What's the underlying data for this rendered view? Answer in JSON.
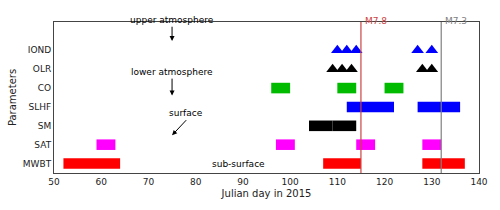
{
  "chart_data": {
    "type": "timeline",
    "xlabel": "Julian day in 2015",
    "ylabel": "Parameters",
    "xlim": [
      50,
      140
    ],
    "ylim": [
      -0.5,
      7.5
    ],
    "xticks": [
      50,
      60,
      70,
      80,
      90,
      100,
      110,
      120,
      130,
      140
    ],
    "yticks": [
      {
        "value": 0,
        "label": "MWBT"
      },
      {
        "value": 1,
        "label": "SAT"
      },
      {
        "value": 2,
        "label": "SM"
      },
      {
        "value": 3,
        "label": "SLHF"
      },
      {
        "value": 4,
        "label": "CO"
      },
      {
        "value": 5,
        "label": "OLR"
      },
      {
        "value": 6,
        "label": "IOND"
      }
    ],
    "grid": false,
    "rectangles": [
      {
        "x": 52,
        "y": -0.28,
        "w": 12,
        "h": 0.56,
        "color": "#ff0000"
      },
      {
        "x": 107,
        "y": -0.28,
        "w": 8,
        "h": 0.56,
        "color": "#ff0000"
      },
      {
        "x": 128,
        "y": -0.28,
        "w": 9,
        "h": 0.56,
        "color": "#ff0000"
      },
      {
        "x": 59,
        "y": 0.72,
        "w": 4,
        "h": 0.56,
        "color": "#ff00ff"
      },
      {
        "x": 97,
        "y": 0.72,
        "w": 4,
        "h": 0.56,
        "color": "#ff00ff"
      },
      {
        "x": 114,
        "y": 0.72,
        "w": 4,
        "h": 0.56,
        "color": "#ff00ff"
      },
      {
        "x": 128,
        "y": 0.72,
        "w": 4,
        "h": 0.56,
        "color": "#ff00ff"
      },
      {
        "x": 104,
        "y": 1.72,
        "w": 5,
        "h": 0.56,
        "color": "#000000"
      },
      {
        "x": 109,
        "y": 1.72,
        "w": 5,
        "h": 0.56,
        "color": "#000000"
      },
      {
        "x": 112,
        "y": 2.72,
        "w": 10,
        "h": 0.56,
        "color": "#0000ff"
      },
      {
        "x": 127,
        "y": 2.72,
        "w": 9,
        "h": 0.56,
        "color": "#0000ff"
      },
      {
        "x": 96,
        "y": 3.72,
        "w": 4,
        "h": 0.56,
        "color": "#00bb00"
      },
      {
        "x": 110,
        "y": 3.72,
        "w": 4,
        "h": 0.56,
        "color": "#00bb00"
      },
      {
        "x": 120,
        "y": 3.72,
        "w": 4,
        "h": 0.56,
        "color": "#00bb00"
      }
    ],
    "markers": [
      {
        "marker": "triangle-up",
        "color": "blue",
        "x": [
          110,
          112,
          114,
          127,
          130
        ],
        "y": [
          6.0,
          6.0,
          6.0,
          6.0,
          6.0
        ]
      },
      {
        "marker": "triangle-up",
        "color": "black",
        "x": [
          109,
          111,
          113,
          128,
          130
        ],
        "y": [
          5.0,
          5.0,
          5.0,
          5.0,
          5.0
        ]
      }
    ],
    "vlines": [
      {
        "x": 115,
        "label": "M7.8",
        "label_y": 7.2,
        "color": "#cc4444"
      },
      {
        "x": 132,
        "label": "M7.3",
        "label_y": 7.2,
        "color": "gray"
      }
    ],
    "annotations": [
      {
        "text": "upper atmosphere",
        "x": 75,
        "y": 7.25,
        "arrow_x": 75,
        "arrow_y": 6.5
      },
      {
        "text": "lower atmosphere",
        "x": 75,
        "y": 4.5,
        "arrow_x": 75,
        "arrow_y": 3.6
      },
      {
        "text": "surface",
        "x": 78,
        "y": 2.3,
        "arrow_x": 75,
        "arrow_y": 1.5
      },
      {
        "text": "sub-surface",
        "x": 83,
        "y": 0.0
      }
    ]
  }
}
